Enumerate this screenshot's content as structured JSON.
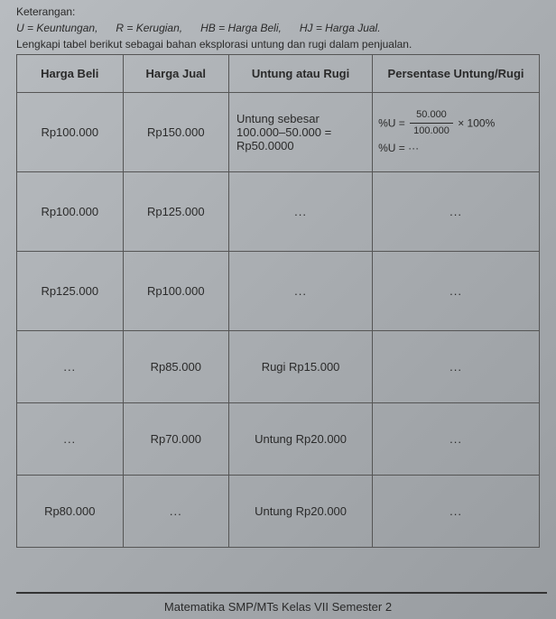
{
  "header": {
    "keterangan_label": "Keterangan:",
    "defs": [
      "U = Keuntungan,",
      "R = Kerugian,",
      "HB = Harga Beli,",
      "HJ = Harga Jual."
    ],
    "instruction": "Lengkapi tabel berikut sebagai bahan eksplorasi untung dan rugi dalam penjualan."
  },
  "table": {
    "headers": {
      "hb": "Harga Beli",
      "hj": "Harga Jual",
      "ur": "Untung atau Rugi",
      "pct": "Persentase Untung/Rugi"
    },
    "rows": [
      {
        "hb": "Rp100.000",
        "hj": "Rp150.000",
        "ur": "Untung sebesar 100.000–50.000 = Rp50.0000",
        "pct_prefix": "%U =",
        "pct_num": "50.000",
        "pct_den": "100.000",
        "pct_suffix": "× 100%",
        "pct_line2": "%U = ···"
      },
      {
        "hb": "Rp100.000",
        "hj": "Rp125.000",
        "ur": "...",
        "pct": "..."
      },
      {
        "hb": "Rp125.000",
        "hj": "Rp100.000",
        "ur": "...",
        "pct": "..."
      },
      {
        "hb": "...",
        "hj": "Rp85.000",
        "ur": "Rugi Rp15.000",
        "pct": "..."
      },
      {
        "hb": "...",
        "hj": "Rp70.000",
        "ur": "Untung Rp20.000",
        "pct": "..."
      },
      {
        "hb": "Rp80.000",
        "hj": "...",
        "ur": "Untung Rp20.000",
        "pct": "..."
      }
    ]
  },
  "footer": "Matematika SMP/MTs Kelas VII Semester 2"
}
